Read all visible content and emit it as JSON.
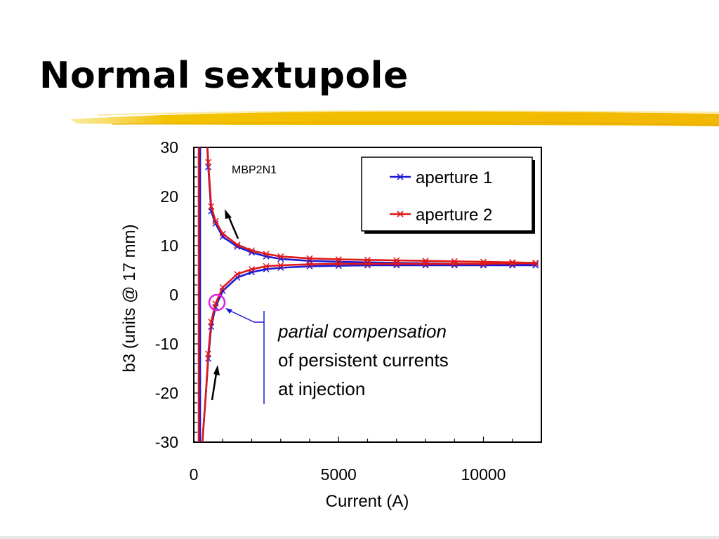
{
  "slide": {
    "title": "Normal sextupole"
  },
  "annotation": {
    "line1": "partial compensation",
    "line2": "of persistent currents",
    "line3": "at injection"
  },
  "colors": {
    "underline": "#f2c200",
    "aperture1": "#1a1ad6",
    "aperture2": "#e01818",
    "circle": "#e020e0",
    "annotation_line": "#1a1ad6"
  },
  "chart_data": {
    "type": "line",
    "title": "",
    "inset_label": "MBP2N1",
    "xlabel": "Current (A)",
    "ylabel": "b3 (units @ 17 mm)",
    "xlim": [
      0,
      12000
    ],
    "ylim": [
      -30,
      30
    ],
    "xticks": [
      0,
      5000,
      10000
    ],
    "yticks": [
      30,
      20,
      10,
      0,
      -10,
      -20,
      -30
    ],
    "legend_position": "top-right",
    "series": [
      {
        "name": "aperture 1",
        "color": "#1a1ad6",
        "branch": "ramp-up",
        "x": [
          500,
          600,
          750,
          1000,
          1500,
          2000,
          2500,
          3000,
          4000,
          5000,
          6000,
          7000,
          8000,
          9000,
          10000,
          11000,
          11800
        ],
        "y": [
          -13,
          -6.5,
          -2.5,
          0.8,
          3.5,
          4.6,
          5.2,
          5.5,
          5.8,
          5.9,
          6.0,
          6.0,
          6.0,
          6.0,
          6.0,
          6.0,
          6.0
        ]
      },
      {
        "name": "aperture 1",
        "color": "#1a1ad6",
        "branch": "ramp-down",
        "x": [
          11800,
          11000,
          10000,
          9000,
          8000,
          7000,
          6000,
          5000,
          4000,
          3000,
          2500,
          2000,
          1500,
          1000,
          750,
          600,
          500
        ],
        "y": [
          6.0,
          6.1,
          6.2,
          6.3,
          6.4,
          6.5,
          6.6,
          6.7,
          6.9,
          7.3,
          7.8,
          8.6,
          9.8,
          11.8,
          14.5,
          17.0,
          26.0
        ]
      },
      {
        "name": "aperture 2",
        "color": "#e01818",
        "branch": "ramp-up",
        "x": [
          500,
          600,
          750,
          1000,
          1500,
          2000,
          2500,
          3000,
          4000,
          5000,
          6000,
          7000,
          8000,
          9000,
          10000,
          11000,
          11800
        ],
        "y": [
          -12,
          -5.5,
          -1.8,
          1.5,
          4.2,
          5.2,
          5.8,
          6.0,
          6.2,
          6.3,
          6.3,
          6.3,
          6.3,
          6.3,
          6.3,
          6.4,
          6.4
        ]
      },
      {
        "name": "aperture 2",
        "color": "#e01818",
        "branch": "ramp-down",
        "x": [
          11800,
          11000,
          10000,
          9000,
          8000,
          7000,
          6000,
          5000,
          4000,
          3000,
          2500,
          2000,
          1500,
          1000,
          750,
          600,
          500
        ],
        "y": [
          6.5,
          6.6,
          6.7,
          6.8,
          6.9,
          7.0,
          7.1,
          7.2,
          7.4,
          7.8,
          8.3,
          9.0,
          10.2,
          12.4,
          15.0,
          18.0,
          27.0
        ]
      }
    ]
  }
}
